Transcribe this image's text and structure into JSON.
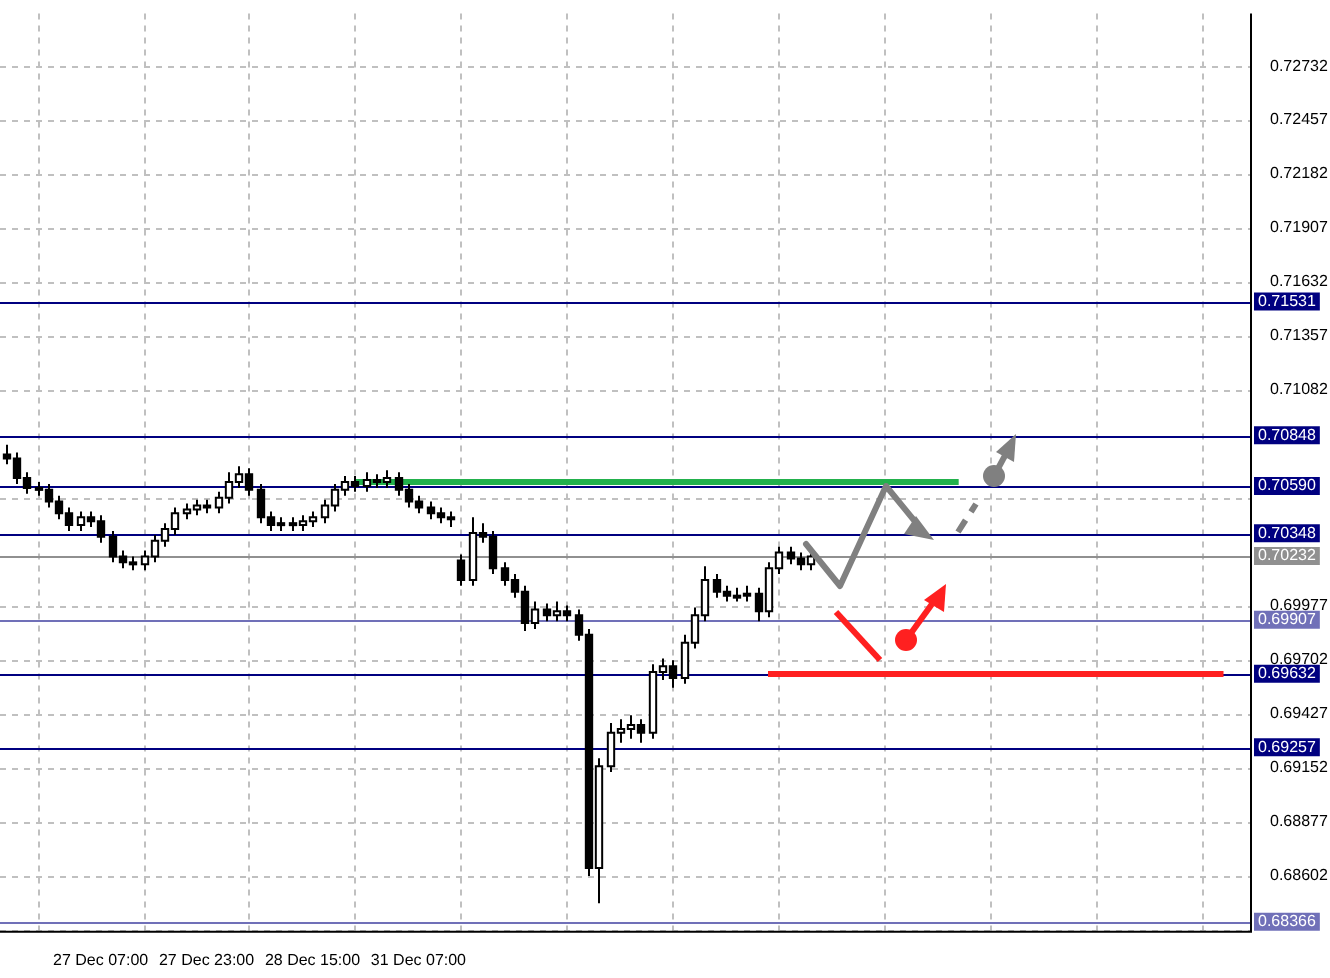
{
  "chart_data": {
    "type": "candlestick",
    "categories": [
      null,
      null,
      null,
      null,
      null,
      null,
      null,
      null,
      null,
      "27 Dec 07:00",
      null,
      null,
      null,
      null,
      null,
      null,
      null,
      null,
      null,
      "27 Dec 23:00",
      null,
      null,
      null,
      null,
      null,
      null,
      null,
      null,
      null,
      "28 Dec 15:00",
      null,
      null,
      null,
      null,
      null,
      null,
      null,
      null,
      null,
      "31 Dec 07:00",
      null,
      null,
      null,
      null,
      null,
      null,
      null,
      null,
      null,
      null,
      null,
      null,
      null,
      null,
      null,
      null,
      null,
      null,
      null,
      null,
      null,
      null,
      null,
      null,
      null,
      null,
      null,
      null,
      null,
      null,
      null,
      null,
      null,
      null,
      null,
      null,
      null,
      null,
      null,
      null,
      null,
      null,
      null,
      null,
      null,
      null,
      null,
      null,
      null,
      null,
      null,
      null,
      null,
      null,
      null,
      null,
      null,
      null,
      null,
      null,
      null,
      null,
      null,
      null,
      null,
      null,
      null,
      null,
      null,
      null,
      null,
      null,
      null,
      null,
      null,
      null,
      null,
      null
    ],
    "ohlc": [
      [
        0.7075,
        0.708,
        0.707,
        0.7073
      ],
      [
        0.7073,
        0.7076,
        0.706,
        0.7063
      ],
      [
        0.7063,
        0.7066,
        0.7055,
        0.7058
      ],
      [
        0.7058,
        0.7061,
        0.7054,
        0.7057
      ],
      [
        0.7057,
        0.706,
        0.7048,
        0.7051
      ],
      [
        0.7051,
        0.7054,
        0.7042,
        0.7045
      ],
      [
        0.7045,
        0.7048,
        0.7036,
        0.7039
      ],
      [
        0.7039,
        0.7046,
        0.7036,
        0.7043
      ],
      [
        0.7043,
        0.7046,
        0.7038,
        0.7041
      ],
      [
        0.7041,
        0.7044,
        0.703,
        0.7033
      ],
      [
        0.7033,
        0.7036,
        0.702,
        0.7023
      ],
      [
        0.7023,
        0.7026,
        0.7017,
        0.702
      ],
      [
        0.702,
        0.7023,
        0.7016,
        0.7019
      ],
      [
        0.7019,
        0.7026,
        0.7016,
        0.7023
      ],
      [
        0.7023,
        0.7034,
        0.702,
        0.7031
      ],
      [
        0.7031,
        0.704,
        0.7028,
        0.7037
      ],
      [
        0.7037,
        0.7048,
        0.7034,
        0.7045
      ],
      [
        0.7045,
        0.705,
        0.7042,
        0.7047
      ],
      [
        0.7047,
        0.7052,
        0.7044,
        0.7049
      ],
      [
        0.7049,
        0.7052,
        0.7045,
        0.7048
      ],
      [
        0.7048,
        0.7056,
        0.7045,
        0.7053
      ],
      [
        0.7053,
        0.7066,
        0.705,
        0.7061
      ],
      [
        0.7061,
        0.7069,
        0.7058,
        0.7065
      ],
      [
        0.7065,
        0.7068,
        0.7054,
        0.7057
      ],
      [
        0.7057,
        0.706,
        0.704,
        0.7043
      ],
      [
        0.7043,
        0.7046,
        0.7036,
        0.7039
      ],
      [
        0.7039,
        0.7043,
        0.7036,
        0.704
      ],
      [
        0.704,
        0.7043,
        0.7036,
        0.7039
      ],
      [
        0.7039,
        0.7044,
        0.7036,
        0.7041
      ],
      [
        0.7041,
        0.7046,
        0.7038,
        0.7043
      ],
      [
        0.7043,
        0.7052,
        0.704,
        0.7049
      ],
      [
        0.7049,
        0.706,
        0.7046,
        0.7057
      ],
      [
        0.7057,
        0.7064,
        0.7054,
        0.7061
      ],
      [
        0.7061,
        0.7064,
        0.7056,
        0.7059
      ],
      [
        0.7059,
        0.7066,
        0.7056,
        0.7062
      ],
      [
        0.7062,
        0.7065,
        0.7058,
        0.7061
      ],
      [
        0.7061,
        0.7067,
        0.7058,
        0.7063
      ],
      [
        0.7063,
        0.7066,
        0.7054,
        0.7057
      ],
      [
        0.7057,
        0.706,
        0.7048,
        0.7051
      ],
      [
        0.7051,
        0.7054,
        0.7045,
        0.7048
      ],
      [
        0.7048,
        0.7051,
        0.7042,
        0.7045
      ],
      [
        0.7045,
        0.7048,
        0.704,
        0.7043
      ],
      [
        0.7043,
        0.7046,
        0.7038,
        0.7042
      ],
      [
        0.7021,
        0.7024,
        0.7008,
        0.7011
      ],
      [
        0.7011,
        0.7043,
        0.7008,
        0.7035
      ],
      [
        0.7035,
        0.704,
        0.703,
        0.7033
      ],
      [
        0.7033,
        0.7036,
        0.7014,
        0.7017
      ],
      [
        0.7017,
        0.702,
        0.7008,
        0.7011
      ],
      [
        0.7011,
        0.7014,
        0.7002,
        0.7005
      ],
      [
        0.7005,
        0.7008,
        0.6985,
        0.6989
      ],
      [
        0.6989,
        0.7,
        0.6986,
        0.6996
      ],
      [
        0.6996,
        0.6999,
        0.699,
        0.6993
      ],
      [
        0.6993,
        0.7,
        0.699,
        0.6995
      ],
      [
        0.6995,
        0.6998,
        0.699,
        0.6993
      ],
      [
        0.6993,
        0.6996,
        0.698,
        0.6983
      ],
      [
        0.6983,
        0.6986,
        0.686,
        0.6864
      ],
      [
        0.6864,
        0.692,
        0.6846,
        0.6916
      ],
      [
        0.6916,
        0.6938,
        0.6913,
        0.6933
      ],
      [
        0.6933,
        0.694,
        0.6928,
        0.6935
      ],
      [
        0.6935,
        0.6942,
        0.693,
        0.6937
      ],
      [
        0.6937,
        0.694,
        0.6928,
        0.6933
      ],
      [
        0.6933,
        0.6968,
        0.693,
        0.6964
      ],
      [
        0.6964,
        0.6971,
        0.696,
        0.6967
      ],
      [
        0.6967,
        0.697,
        0.6956,
        0.6961
      ],
      [
        0.6961,
        0.6983,
        0.6958,
        0.6979
      ],
      [
        0.6979,
        0.6997,
        0.6976,
        0.6993
      ],
      [
        0.6993,
        0.7018,
        0.699,
        0.7011
      ],
      [
        0.7011,
        0.7014,
        0.7002,
        0.7005
      ],
      [
        0.7005,
        0.7008,
        0.7,
        0.7003
      ],
      [
        0.7003,
        0.7007,
        0.7,
        0.7003
      ],
      [
        0.7003,
        0.7008,
        0.7,
        0.7004
      ],
      [
        0.7004,
        0.7007,
        0.699,
        0.6995
      ],
      [
        0.6995,
        0.702,
        0.6992,
        0.7017
      ],
      [
        0.7017,
        0.7028,
        0.7014,
        0.7025
      ],
      [
        0.7025,
        0.7028,
        0.7019,
        0.7022
      ],
      [
        0.7022,
        0.7025,
        0.7016,
        0.7019
      ],
      [
        0.7019,
        0.7026,
        0.7016,
        0.7023
      ],
      null,
      null,
      null,
      null,
      null,
      null,
      null,
      null,
      null,
      null,
      null,
      null,
      null,
      null,
      null,
      null,
      null,
      null,
      null,
      null,
      null,
      null,
      null,
      null,
      null,
      null,
      null,
      null,
      null,
      null,
      null,
      null,
      null,
      null,
      null,
      null,
      null,
      null,
      null,
      null,
      null
    ],
    "series": [
      {
        "type": "line",
        "color": "#22b14c",
        "values": [
          null,
          null,
          null,
          null,
          null,
          null,
          null,
          null,
          null,
          null,
          null,
          null,
          null,
          null,
          null,
          null,
          null,
          null,
          null,
          null,
          null,
          null,
          null,
          null,
          null,
          null,
          null,
          null,
          null,
          null,
          null,
          null,
          null,
          0.7061,
          null,
          null,
          null,
          null,
          null,
          null,
          null,
          null,
          null,
          null,
          null,
          null,
          null,
          null,
          null,
          null,
          null,
          null,
          null,
          null,
          null,
          null,
          null,
          null,
          null,
          null,
          null,
          null,
          null,
          null,
          null,
          null,
          null,
          null,
          null,
          null,
          null,
          null,
          null,
          null,
          null,
          null,
          null,
          null,
          null,
          null,
          null,
          null,
          null,
          null,
          null,
          null,
          null,
          null,
          null,
          null,
          0.7061,
          null,
          null,
          null,
          null,
          null,
          null,
          null,
          null,
          null,
          null,
          null,
          null,
          null,
          null,
          null,
          null,
          null,
          null,
          null,
          null,
          null,
          null,
          null,
          null,
          null,
          null,
          null
        ]
      },
      {
        "type": "line",
        "color": "#ff2020",
        "values": [
          null,
          null,
          null,
          null,
          null,
          null,
          null,
          null,
          null,
          null,
          null,
          null,
          null,
          null,
          null,
          null,
          null,
          null,
          null,
          null,
          null,
          null,
          null,
          null,
          null,
          null,
          null,
          null,
          null,
          null,
          null,
          null,
          null,
          null,
          null,
          null,
          null,
          null,
          null,
          null,
          null,
          null,
          null,
          null,
          null,
          null,
          null,
          null,
          null,
          null,
          null,
          null,
          null,
          null,
          null,
          null,
          null,
          null,
          null,
          null,
          null,
          null,
          null,
          null,
          null,
          null,
          null,
          null,
          null,
          null,
          null,
          null,
          0.6963,
          null,
          null,
          null,
          null,
          null,
          null,
          null,
          null,
          null,
          null,
          null,
          null,
          null,
          null,
          null,
          null,
          null,
          null,
          null,
          null,
          null,
          null,
          null,
          null,
          null,
          null,
          null,
          null,
          null,
          null,
          null,
          null,
          null,
          null,
          null,
          null,
          null,
          null,
          null,
          null,
          null,
          null,
          0.6963,
          null,
          null
        ]
      }
    ],
    "ylim": [
      0.6832,
      0.73
    ],
    "yticks": [
      0.72732,
      0.72457,
      0.72182,
      0.71907,
      0.71632,
      0.71357,
      0.71082,
      {
        "value": 0.70527,
        "label": null
      },
      0.69977,
      0.69702,
      0.69427,
      0.69152,
      0.68877,
      0.68602,
      {
        "value": 0.68327,
        "label": null
      }
    ],
    "ref_lines": [
      {
        "axis": "y",
        "value": 0.71531,
        "label": "0.71531",
        "color": "#000080"
      },
      {
        "axis": "y",
        "value": 0.70848,
        "label": "0.70848",
        "color": "#000080"
      },
      {
        "axis": "y",
        "value": 0.7059,
        "label": "0.70590",
        "color": "#000080"
      },
      {
        "axis": "y",
        "value": 0.70348,
        "label": "0.70348",
        "color": "#000080"
      },
      {
        "axis": "y",
        "value": 0.70232,
        "label": "0.70232",
        "color": "#909090"
      },
      {
        "axis": "y",
        "value": 0.69907,
        "label": "0.69907",
        "color": "#7070b8"
      },
      {
        "axis": "y",
        "value": 0.69632,
        "label": "0.69632",
        "color": "#000080"
      },
      {
        "axis": "y",
        "value": 0.69257,
        "label": "0.69257",
        "color": "#000080"
      },
      {
        "axis": "y",
        "value": 0.68366,
        "label": "0.68366",
        "color": "#7070b8"
      }
    ],
    "grid": true,
    "legend": false
  }
}
